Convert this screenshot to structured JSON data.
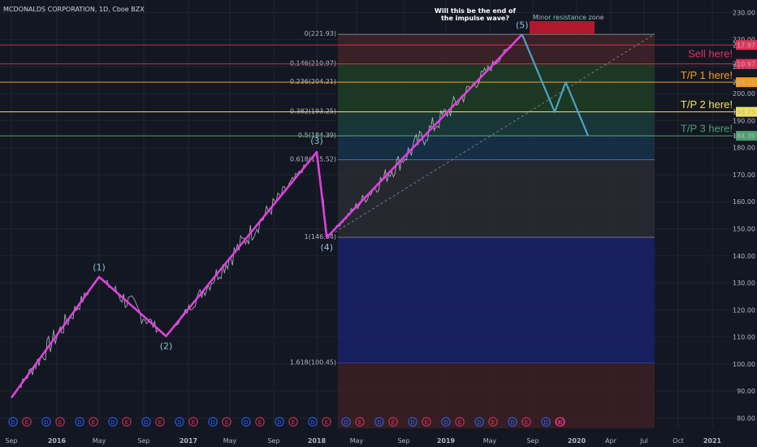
{
  "header": {
    "title": "MCDONALDS CORPORATION, 1D, Cboe BZX"
  },
  "colors": {
    "background": "#131722",
    "grid": "#1f2430",
    "wave": "#e040e0",
    "projection": "#4aa3c4",
    "price": "#d5d8de",
    "fib_top_band": "#5a1e28",
    "fib_red": "#3d2228",
    "fib_green": "#1f3d24",
    "fib_teal": "#1b3b3a",
    "fib_blue": "#18334a",
    "fib_gray": "#2a2c33",
    "fib_navy": "#1a2168",
    "fib_maroon": "#3a1f23"
  },
  "chart_data": {
    "type": "line",
    "title": "MCDONALDS CORPORATION, 1D, Cboe BZX",
    "ylim": [
      75,
      232
    ],
    "x_tick_labels": [
      "Sep",
      "2016",
      "May",
      "Sep",
      "2017",
      "May",
      "Sep",
      "2018",
      "May",
      "Sep",
      "2019",
      "May",
      "Sep",
      "2020",
      "Apr",
      "Jul",
      "Oct",
      "2021"
    ],
    "y_tick_labels": [
      "80.00",
      "90.00",
      "100.00",
      "110.00",
      "120.00",
      "130.00",
      "140.00",
      "150.00",
      "160.00",
      "170.00",
      "180.00",
      "190.00",
      "200.00",
      "210.00",
      "220.00",
      "230.00"
    ],
    "y_ticks": [
      80,
      90,
      100,
      110,
      120,
      130,
      140,
      150,
      160,
      170,
      180,
      190,
      200,
      210,
      220,
      230
    ],
    "wave": {
      "labels": [
        "(1)",
        "(2)",
        "(3)",
        "(4)",
        "(5)"
      ],
      "points": [
        {
          "date": "2015-09",
          "value": 87.5
        },
        {
          "date": "2016-05",
          "value": 132.2
        },
        {
          "date": "2016-11",
          "value": 110.3
        },
        {
          "date": "2018-01",
          "value": 178.4
        },
        {
          "date": "2018-02",
          "value": 146.8
        },
        {
          "date": "2019-08",
          "value": 221.9
        }
      ]
    },
    "projection": [
      {
        "date": "2019-08",
        "value": 221.9
      },
      {
        "date": "2019-11",
        "value": 193.2
      },
      {
        "date": "2019-12",
        "value": 204.2
      },
      {
        "date": "2020-02",
        "value": 184.4
      }
    ],
    "fib_levels": [
      {
        "label": "0(221.93)",
        "value": 221.93
      },
      {
        "label": "0.146(210.97)",
        "value": 210.97
      },
      {
        "label": "0.236(204.21)",
        "value": 204.21
      },
      {
        "label": "0.382(193.25)",
        "value": 193.25
      },
      {
        "label": "0.5(184.39)",
        "value": 184.39
      },
      {
        "label": "0.618(175.52)",
        "value": 175.52
      },
      {
        "label": "1(146.84)",
        "value": 146.84
      },
      {
        "label": "1.618(100.45)",
        "value": 100.45
      }
    ],
    "price_badges": [
      {
        "text": "217.97",
        "value": 217.97,
        "color": "#e0335a"
      },
      {
        "text": "210.97",
        "value": 210.97,
        "color": "#e0335a"
      },
      {
        "text": "204.21",
        "value": 204.21,
        "color": "#f59a1f"
      },
      {
        "text": "193.25",
        "value": 193.25,
        "color": "#f1e25c"
      },
      {
        "text": "184.39",
        "value": 184.39,
        "color": "#4c9e6f"
      }
    ],
    "targets": [
      {
        "text": "Sell here!",
        "value": 214.0,
        "color": "#e0335a"
      },
      {
        "text": "T/P 1 here!",
        "value": 206.0,
        "color": "#f59a1f"
      },
      {
        "text": "T/P 2 here!",
        "value": 195.3,
        "color": "#f1e25c"
      },
      {
        "text": "T/P 3 here!",
        "value": 186.3,
        "color": "#4c9e6f"
      }
    ],
    "annotations": {
      "question": [
        "Will this be the end of",
        "the impulse wave?"
      ],
      "resistance": "Minor resistance zone"
    },
    "event_markers": [
      "D",
      "E",
      "D",
      "E",
      "D",
      "E",
      "D",
      "E",
      "D",
      "E",
      "D",
      "E",
      "D",
      "E",
      "D",
      "E",
      "D",
      "E",
      "D",
      "E",
      "D",
      "E",
      "D",
      "E",
      "D",
      "E",
      "D",
      "E",
      "D",
      "E",
      "D",
      "E",
      "D",
      "E",
      "D",
      "E",
      "E"
    ]
  }
}
